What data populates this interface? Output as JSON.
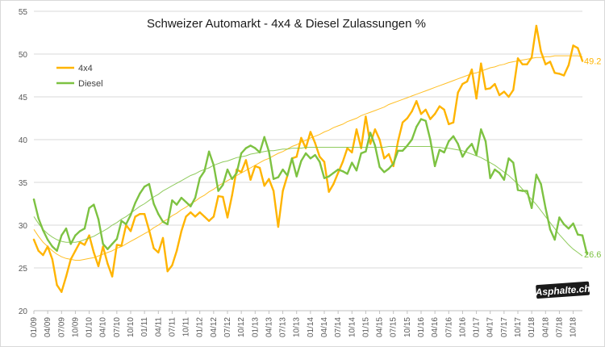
{
  "chart_data": {
    "type": "line",
    "title": "Schweizer Automarkt - 4x4 & Diesel Zulassungen %",
    "xlabel": "",
    "ylabel": "",
    "ylim": [
      20,
      55
    ],
    "yticks": [
      20,
      25,
      30,
      35,
      40,
      45,
      50,
      55
    ],
    "grid": "horizontal",
    "legend": "top-left",
    "x_ticks": [
      "01/09",
      "04/09",
      "07/09",
      "10/09",
      "01/10",
      "04/10",
      "07/10",
      "10/10",
      "01/11",
      "04/11",
      "07/11",
      "10/11",
      "01/12",
      "04/12",
      "07/12",
      "10/12",
      "01/13",
      "04/13",
      "07/13",
      "10/13",
      "01/14",
      "04/14",
      "07/14",
      "10/14",
      "01/15",
      "04/15",
      "07/15",
      "10/15",
      "01/16",
      "04/16",
      "07/16",
      "10/16",
      "01/17",
      "04/17",
      "07/17",
      "10/17",
      "01/18",
      "04/18",
      "07/18",
      "10/18"
    ],
    "series": [
      {
        "name": "4x4",
        "color": "#FFB400",
        "values": [
          28.3,
          27.0,
          26.5,
          27.5,
          26.0,
          23.0,
          22.2,
          24.0,
          26.0,
          27.0,
          28.0,
          27.7,
          28.8,
          26.8,
          25.2,
          27.5,
          25.5,
          24.0,
          27.7,
          27.6,
          30.0,
          29.3,
          31.0,
          31.3,
          31.3,
          29.4,
          27.3,
          26.8,
          28.5,
          24.6,
          25.3,
          27.0,
          29.3,
          31.0,
          31.5,
          31.0,
          31.5,
          31.0,
          30.5,
          31.0,
          33.4,
          33.3,
          30.9,
          33.5,
          36.5,
          36.2,
          37.6,
          35.3,
          36.9,
          36.7,
          34.6,
          35.4,
          34.0,
          29.8,
          34.0,
          35.8,
          37.8,
          38.0,
          40.2,
          39.0,
          40.9,
          39.6,
          38.0,
          37.4,
          33.9,
          34.8,
          36.1,
          37.4,
          39.0,
          38.5,
          41.2,
          39.0,
          42.7,
          39.5,
          41.2,
          40.0,
          37.8,
          38.3,
          36.9,
          39.8,
          42.0,
          42.5,
          43.3,
          44.5,
          43.0,
          43.5,
          42.4,
          43.0,
          43.9,
          43.5,
          41.8,
          42.0,
          45.5,
          46.5,
          46.8,
          48.2,
          44.8,
          48.9,
          45.9,
          46.0,
          46.5,
          45.2,
          45.6,
          45.0,
          45.8,
          49.5,
          48.8,
          48.8,
          49.6,
          53.3,
          50.3,
          48.8,
          49.1,
          47.8,
          47.7,
          47.5,
          48.7,
          51.0,
          50.7,
          49.2
        ],
        "trend": [
          29.5,
          28.7,
          28.0,
          27.5,
          27.0,
          26.6,
          26.3,
          26.1,
          26.0,
          25.9,
          25.9,
          26.0,
          26.1,
          26.2,
          26.4,
          26.6,
          26.8,
          27.0,
          27.3,
          27.5,
          27.8,
          28.1,
          28.4,
          28.7,
          29.0,
          29.3,
          29.7,
          30.0,
          30.4,
          30.7,
          31.1,
          31.4,
          31.8,
          32.1,
          32.5,
          32.8,
          33.2,
          33.5,
          33.9,
          34.2,
          34.6,
          34.9,
          35.2,
          35.5,
          35.8,
          36.1,
          36.4,
          36.7,
          37.0,
          37.3,
          37.6,
          37.8,
          38.1,
          38.4,
          38.6,
          38.9,
          39.2,
          39.4,
          39.7,
          39.9,
          40.2,
          40.4,
          40.6,
          40.9,
          41.1,
          41.4,
          41.6,
          41.8,
          42.1,
          42.3,
          42.5,
          42.8,
          43.0,
          43.2,
          43.4,
          43.6,
          43.8,
          44.1,
          44.3,
          44.5,
          44.7,
          44.9,
          45.1,
          45.3,
          45.5,
          45.7,
          45.9,
          46.1,
          46.3,
          46.5,
          46.7,
          46.9,
          47.1,
          47.3,
          47.5,
          47.7,
          47.8,
          48.0,
          48.2,
          48.4,
          48.5,
          48.7,
          48.8,
          49.0,
          49.1,
          49.2,
          49.3,
          49.4,
          49.5,
          49.6,
          49.6,
          49.7,
          49.7,
          49.8,
          49.8,
          49.8,
          49.8,
          49.8,
          49.8,
          49.7
        ]
      },
      {
        "name": "Diesel",
        "color": "#7DC242",
        "values": [
          33.0,
          30.8,
          29.4,
          28.3,
          27.5,
          27.0,
          28.8,
          29.6,
          27.8,
          28.8,
          29.3,
          29.6,
          32.0,
          32.4,
          30.7,
          27.8,
          27.2,
          27.8,
          28.4,
          30.5,
          30.1,
          31.2,
          32.6,
          33.7,
          34.5,
          34.8,
          32.5,
          31.3,
          30.4,
          30.1,
          32.9,
          32.4,
          33.2,
          32.7,
          32.2,
          33.2,
          35.5,
          36.3,
          38.6,
          37.0,
          34.0,
          34.7,
          36.5,
          35.4,
          36.1,
          38.4,
          39.0,
          39.3,
          39.0,
          38.5,
          40.3,
          38.6,
          35.4,
          35.6,
          36.5,
          35.8,
          37.8,
          35.7,
          37.5,
          38.4,
          37.8,
          38.2,
          37.4,
          35.5,
          35.7,
          36.1,
          36.5,
          36.3,
          36.0,
          37.3,
          36.4,
          38.4,
          38.6,
          40.8,
          39.3,
          36.8,
          36.2,
          36.6,
          37.2,
          38.7,
          38.7,
          39.3,
          40.0,
          41.5,
          42.4,
          42.2,
          40.0,
          36.9,
          38.8,
          38.5,
          39.8,
          40.4,
          39.5,
          38.0,
          38.9,
          39.5,
          38.2,
          41.2,
          39.8,
          35.5,
          36.5,
          36.1,
          35.3,
          37.8,
          37.3,
          34.1,
          34.0,
          34.0,
          32.0,
          35.9,
          34.8,
          32.0,
          29.5,
          28.3,
          30.9,
          30.1,
          29.6,
          30.2,
          28.9,
          28.8,
          26.6
        ],
        "trend": [
          31.0,
          30.2,
          29.5,
          29.0,
          28.6,
          28.3,
          28.1,
          28.0,
          28.0,
          28.0,
          28.1,
          28.3,
          28.5,
          28.7,
          29.0,
          29.3,
          29.6,
          30.0,
          30.3,
          30.7,
          31.0,
          31.4,
          31.8,
          32.2,
          32.5,
          32.9,
          33.3,
          33.6,
          34.0,
          34.3,
          34.6,
          34.9,
          35.2,
          35.5,
          35.8,
          36.0,
          36.3,
          36.5,
          36.7,
          37.0,
          37.2,
          37.4,
          37.5,
          37.7,
          37.9,
          38.0,
          38.1,
          38.3,
          38.4,
          38.5,
          38.6,
          38.7,
          38.7,
          38.8,
          38.9,
          38.9,
          39.0,
          39.0,
          39.0,
          39.1,
          39.1,
          39.1,
          39.1,
          39.1,
          39.1,
          39.1,
          39.1,
          39.1,
          39.1,
          39.1,
          39.1,
          39.1,
          39.1,
          39.1,
          39.1,
          39.1,
          39.1,
          39.2,
          39.2,
          39.2,
          39.2,
          39.2,
          39.2,
          39.2,
          39.2,
          39.2,
          39.2,
          39.1,
          39.1,
          39.0,
          39.0,
          38.9,
          38.8,
          38.7,
          38.5,
          38.3,
          38.1,
          37.9,
          37.6,
          37.3,
          37.0,
          36.6,
          36.2,
          35.8,
          35.3,
          34.8,
          34.2,
          33.6,
          33.0,
          32.4,
          31.7,
          31.0,
          30.3,
          29.6,
          28.9,
          28.3,
          27.7,
          27.2,
          26.8,
          26.4
        ]
      }
    ],
    "end_labels": [
      "49.2",
      "26.6"
    ]
  },
  "watermark": "Asphalte.ch"
}
